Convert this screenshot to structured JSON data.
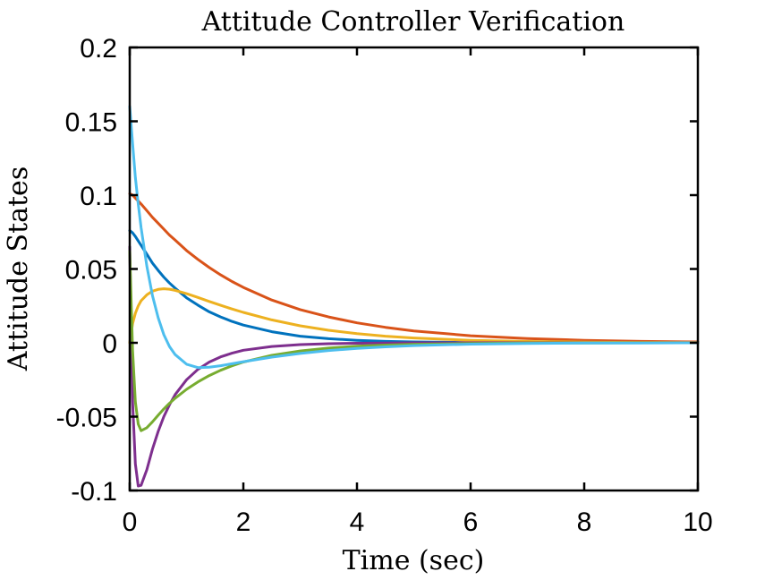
{
  "chart_data": {
    "type": "line",
    "title": "Attitude Controller Verification",
    "xlabel": "Time (sec)",
    "ylabel": "Attitude States",
    "xlim": [
      0,
      10
    ],
    "ylim": [
      -0.1,
      0.2
    ],
    "xticks": [
      0,
      2,
      4,
      6,
      8,
      10
    ],
    "xtick_labels": [
      "0",
      "2",
      "4",
      "6",
      "8",
      "10"
    ],
    "yticks": [
      -0.1,
      -0.05,
      0,
      0.05,
      0.1,
      0.15,
      0.2
    ],
    "ytick_labels": [
      "-0.1",
      "-0.05",
      "0",
      "0.05",
      "0.1",
      "0.15",
      "0.2"
    ],
    "grid": false,
    "legend": "none",
    "x": [
      0,
      0.05,
      0.1,
      0.15,
      0.2,
      0.3,
      0.4,
      0.5,
      0.6,
      0.7,
      0.8,
      1.0,
      1.2,
      1.4,
      1.6,
      1.8,
      2.0,
      2.5,
      3.0,
      3.5,
      4.0,
      4.5,
      5.0,
      6.0,
      7.0,
      8.0,
      9.0,
      10.0
    ],
    "series": [
      {
        "color": "#0072BD",
        "values": [
          0.076,
          0.0745,
          0.072,
          0.069,
          0.066,
          0.06,
          0.054,
          0.049,
          0.0445,
          0.0405,
          0.037,
          0.0305,
          0.0255,
          0.021,
          0.0175,
          0.0145,
          0.012,
          0.0075,
          0.0045,
          0.0028,
          0.0017,
          0.001,
          0.0006,
          0.0002,
          0.0001,
          0,
          0,
          0
        ]
      },
      {
        "color": "#D95319",
        "values": [
          0.101,
          0.1,
          0.098,
          0.096,
          0.094,
          0.0895,
          0.085,
          0.081,
          0.077,
          0.073,
          0.0695,
          0.0625,
          0.0565,
          0.051,
          0.046,
          0.0415,
          0.0375,
          0.029,
          0.0225,
          0.0175,
          0.0135,
          0.0105,
          0.008,
          0.0048,
          0.0029,
          0.0017,
          0.001,
          0.0006
        ]
      },
      {
        "color": "#EDB120",
        "values": [
          0.0,
          0.013,
          0.02,
          0.025,
          0.0285,
          0.0325,
          0.035,
          0.0362,
          0.0366,
          0.0363,
          0.0355,
          0.0333,
          0.0307,
          0.028,
          0.0254,
          0.0229,
          0.0206,
          0.0155,
          0.0115,
          0.0085,
          0.0062,
          0.0045,
          0.0033,
          0.0017,
          0.0009,
          0.0005,
          0.0002,
          0.0001
        ]
      },
      {
        "color": "#7E2F8E",
        "values": [
          0.065,
          -0.04,
          -0.082,
          -0.097,
          -0.0965,
          -0.086,
          -0.072,
          -0.06,
          -0.05,
          -0.042,
          -0.035,
          -0.025,
          -0.018,
          -0.013,
          -0.0095,
          -0.007,
          -0.005,
          -0.0025,
          -0.0012,
          -0.0006,
          -0.0003,
          -0.0001,
          0,
          0,
          0,
          0,
          0,
          0
        ]
      },
      {
        "color": "#77AC30",
        "values": [
          0.062,
          -0.005,
          -0.04,
          -0.055,
          -0.0595,
          -0.0575,
          -0.0535,
          -0.049,
          -0.0448,
          -0.041,
          -0.0375,
          -0.0315,
          -0.0265,
          -0.0222,
          -0.0186,
          -0.0156,
          -0.013,
          -0.0085,
          -0.0055,
          -0.0036,
          -0.0023,
          -0.0015,
          -0.001,
          -0.0004,
          -0.0002,
          -0.0001,
          0,
          0
        ]
      },
      {
        "color": "#4DBEEE",
        "values": [
          0.16,
          0.135,
          0.112,
          0.094,
          0.078,
          0.052,
          0.032,
          0.017,
          0.0055,
          -0.0025,
          -0.008,
          -0.0145,
          -0.0168,
          -0.0165,
          -0.0155,
          -0.0142,
          -0.0128,
          -0.0097,
          -0.0072,
          -0.0052,
          -0.0038,
          -0.0027,
          -0.0019,
          -0.0009,
          -0.0004,
          -0.0002,
          -0.0001,
          0
        ]
      }
    ]
  }
}
